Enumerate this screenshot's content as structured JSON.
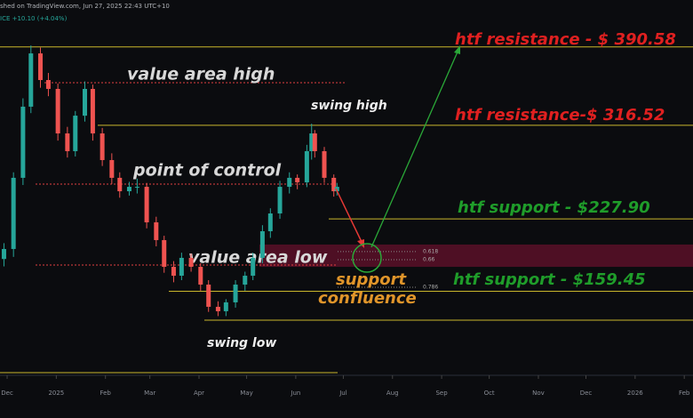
{
  "header": {
    "published": "shed on TradingView.com, Jun 27, 2025 22:43 UTC+10",
    "change": "ICE +10.10 (+4.04%)"
  },
  "chart_data": {
    "type": "candlestick",
    "x": [
      -2,
      4,
      10,
      15,
      21,
      26,
      32,
      38,
      43,
      49,
      54,
      60,
      66,
      71,
      77,
      82,
      88,
      94,
      99,
      105,
      110,
      116,
      122,
      127,
      133,
      138,
      144,
      150,
      155,
      161,
      166,
      172,
      178,
      183,
      189,
      192,
      194,
      200,
      206,
      208
    ],
    "open": [
      190,
      199.5,
      266.8,
      334.1,
      384.5,
      359.3,
      350.9,
      308.8,
      292.0,
      325.6,
      350.9,
      308.8,
      283.6,
      266.8,
      254.1,
      258.3,
      258.3,
      224.7,
      207.9,
      182.6,
      174.2,
      191.1,
      182.6,
      165.8,
      144.8,
      140.6,
      149.0,
      165.8,
      174.2,
      191.1,
      216.3,
      233.1,
      258.3,
      266.8,
      262.5,
      292.0,
      308.8,
      292.0,
      266.8,
      254.1
    ],
    "high": [
      205,
      272,
      342,
      392,
      390,
      366,
      356,
      315,
      330,
      358,
      355,
      314,
      290,
      272,
      263,
      266,
      262,
      230,
      212,
      188,
      196,
      195,
      186,
      170,
      150,
      152,
      170,
      178,
      196,
      222,
      238,
      264,
      272,
      270,
      298,
      318,
      312,
      296,
      270,
      262
    ],
    "low": [
      183,
      192,
      260,
      328,
      352,
      344,
      302,
      286,
      287,
      320,
      302,
      278,
      261,
      248,
      250,
      252,
      219,
      202,
      177,
      168,
      170,
      178,
      160,
      140,
      136,
      136,
      144,
      160,
      170,
      186,
      210,
      228,
      252,
      256,
      258,
      284,
      286,
      262,
      249,
      250
    ],
    "close": [
      199.5,
      266.8,
      334.1,
      384.5,
      359.3,
      350.9,
      308.8,
      292.0,
      325.6,
      350.9,
      308.8,
      283.6,
      266.8,
      254.1,
      258.3,
      258.3,
      224.7,
      207.9,
      182.6,
      174.2,
      191.1,
      182.6,
      165.8,
      144.8,
      140.6,
      149.0,
      165.8,
      174.2,
      191.1,
      216.3,
      233.1,
      258.3,
      266.8,
      262.5,
      292.0,
      308.8,
      292.0,
      266.8,
      254.1,
      258.3
    ],
    "up_color": "#26a69a",
    "down_color": "#ef5350",
    "xlim": [
      -4.5,
      432.5
    ],
    "xticks": [
      {
        "value": 0,
        "label": "Dec"
      },
      {
        "value": 31,
        "label": "2025"
      },
      {
        "value": 62,
        "label": "Feb"
      },
      {
        "value": 90,
        "label": "Mar"
      },
      {
        "value": 121,
        "label": "Apr"
      },
      {
        "value": 151,
        "label": "May"
      },
      {
        "value": 182,
        "label": "Jun"
      },
      {
        "value": 212,
        "label": "Jul"
      },
      {
        "value": 243,
        "label": "Aug"
      },
      {
        "value": 274,
        "label": "Sep"
      },
      {
        "value": 304,
        "label": "Oct"
      },
      {
        "value": 335,
        "label": "Nov"
      },
      {
        "value": 365,
        "label": "Dec"
      },
      {
        "value": 396,
        "label": "2026"
      },
      {
        "value": 427,
        "label": "Feb"
      }
    ],
    "ylim": [
      80,
      435
    ],
    "levels": [
      {
        "label": "htf resistance - $ 390.58",
        "value": 390.58,
        "color": "#e02020"
      },
      {
        "label": "htf resistance-$ 316.52",
        "value": 316.52,
        "color": "#e02020"
      },
      {
        "label": "htf support - $227.90",
        "value": 227.9,
        "color": "#1f9d2a"
      },
      {
        "label": "htf support - $159.45",
        "value": 159.45,
        "color": "#1f9d2a"
      }
    ],
    "annotations": [
      {
        "text": "value area high",
        "value": 356.8
      },
      {
        "text": "point of control",
        "value": 260.9
      },
      {
        "text": "value area low",
        "value": 184.3
      }
    ],
    "swing_labels": [
      "swing high",
      "swing low"
    ],
    "fib_levels": [
      {
        "label": "0.618",
        "value": 197.0
      },
      {
        "label": "0.66",
        "value": 189.4
      },
      {
        "label": "0.786",
        "value": 163.3
      }
    ],
    "zone": [
      203.7,
      182.6
    ],
    "confluence_text": [
      "support",
      "confluence"
    ]
  }
}
